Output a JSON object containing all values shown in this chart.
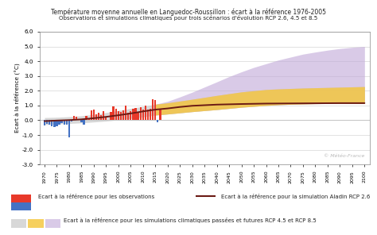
{
  "title1": "Température moyenne annuelle en Languedoc-Roussillon : écart à la référence 1976-2005",
  "title2": "Observations et simulations climatiques pour trois scénarios d'évolution RCP 2.6, 4.5 et 8.5",
  "ylabel": "Ecart à la référence (°C)",
  "watermark": "© Météo-France",
  "ylim": [
    -3.0,
    6.0
  ],
  "yticks": [
    -3.0,
    -2.0,
    -1.0,
    0.0,
    1.0,
    2.0,
    3.0,
    4.0,
    5.0,
    6.0
  ],
  "xtick_years": [
    1970,
    1975,
    1980,
    1985,
    1990,
    1995,
    2000,
    2005,
    2010,
    2015,
    2020,
    2025,
    2030,
    2035,
    2040,
    2045,
    2050,
    2055,
    2060,
    2065,
    2070,
    2075,
    2080,
    2085,
    2090,
    2095,
    2100
  ],
  "obs_years": [
    1970,
    1971,
    1972,
    1973,
    1974,
    1975,
    1976,
    1977,
    1978,
    1979,
    1980,
    1981,
    1982,
    1983,
    1984,
    1985,
    1986,
    1987,
    1988,
    1989,
    1990,
    1991,
    1992,
    1993,
    1994,
    1995,
    1996,
    1997,
    1998,
    1999,
    2000,
    2001,
    2002,
    2003,
    2004,
    2005,
    2006,
    2007,
    2008,
    2009,
    2010,
    2011,
    2012,
    2013,
    2014,
    2015,
    2016,
    2017
  ],
  "obs_values": [
    -0.35,
    -0.25,
    -0.3,
    -0.4,
    -0.45,
    -0.38,
    -0.3,
    -0.2,
    -0.28,
    -0.32,
    -1.15,
    -0.1,
    0.3,
    0.25,
    0.1,
    -0.15,
    -0.28,
    0.3,
    0.1,
    0.65,
    0.7,
    0.42,
    0.5,
    0.35,
    0.6,
    0.25,
    0.05,
    0.55,
    0.95,
    0.8,
    0.6,
    0.55,
    0.65,
    1.0,
    0.5,
    0.6,
    0.8,
    0.85,
    0.55,
    0.9,
    0.75,
    1.0,
    0.75,
    0.8,
    1.45,
    1.35,
    -0.15,
    0.8
  ],
  "sim_all_years": [
    1970,
    1975,
    1980,
    1985,
    1990,
    1995,
    2000,
    2005,
    2010,
    2015,
    2020,
    2025,
    2030,
    2035,
    2040,
    2045,
    2050,
    2055,
    2060,
    2065,
    2070,
    2075,
    2080,
    2085,
    2090,
    2095,
    2100
  ],
  "sim_gray_lower": [
    -0.3,
    -0.25,
    -0.22,
    -0.18,
    -0.12,
    -0.06,
    0.02,
    0.12,
    0.22,
    0.35,
    0.42,
    0.5,
    0.58,
    0.65,
    0.72,
    0.8,
    0.88,
    0.94,
    1.0,
    1.05,
    1.08,
    1.1,
    1.12,
    1.13,
    1.13,
    1.13,
    1.13
  ],
  "sim_gray_upper": [
    0.18,
    0.2,
    0.24,
    0.3,
    0.4,
    0.52,
    0.66,
    0.8,
    0.94,
    1.08,
    1.18,
    1.3,
    1.42,
    1.55,
    1.68,
    1.8,
    1.92,
    2.0,
    2.08,
    2.12,
    2.15,
    2.18,
    2.2,
    2.22,
    2.24,
    2.26,
    2.28
  ],
  "sim_yellow_years": [
    2015,
    2020,
    2025,
    2030,
    2035,
    2040,
    2045,
    2050,
    2055,
    2060,
    2065,
    2070,
    2075,
    2080,
    2085,
    2090,
    2095,
    2100
  ],
  "sim_yellow_lower": [
    0.35,
    0.42,
    0.5,
    0.58,
    0.65,
    0.72,
    0.8,
    0.88,
    0.94,
    1.0,
    1.05,
    1.08,
    1.1,
    1.12,
    1.13,
    1.13,
    1.13,
    1.13
  ],
  "sim_yellow_upper": [
    1.08,
    1.18,
    1.3,
    1.42,
    1.55,
    1.68,
    1.8,
    1.92,
    2.0,
    2.08,
    2.12,
    2.15,
    2.18,
    2.2,
    2.22,
    2.24,
    2.26,
    2.28
  ],
  "sim_purple_years": [
    2015,
    2020,
    2025,
    2030,
    2035,
    2040,
    2045,
    2050,
    2055,
    2060,
    2065,
    2070,
    2075,
    2080,
    2085,
    2090,
    2095,
    2100
  ],
  "sim_purple_lower": [
    0.35,
    0.42,
    0.5,
    0.58,
    0.65,
    0.72,
    0.8,
    0.88,
    0.94,
    1.0,
    1.05,
    1.08,
    1.1,
    1.12,
    1.13,
    1.13,
    1.13,
    1.13
  ],
  "sim_purple_upper": [
    1.08,
    1.28,
    1.58,
    1.9,
    2.25,
    2.6,
    2.96,
    3.28,
    3.58,
    3.83,
    4.08,
    4.28,
    4.48,
    4.62,
    4.75,
    4.86,
    4.94,
    5.0
  ],
  "rcp26_line_years": [
    1970,
    1975,
    1980,
    1985,
    1990,
    1995,
    2000,
    2005,
    2010,
    2015,
    2020,
    2025,
    2030,
    2040,
    2050,
    2060,
    2070,
    2080,
    2090,
    2100
  ],
  "rcp26_line_values": [
    -0.06,
    -0.02,
    0.01,
    0.06,
    0.14,
    0.23,
    0.34,
    0.46,
    0.6,
    0.72,
    0.8,
    0.9,
    0.98,
    1.06,
    1.1,
    1.13,
    1.14,
    1.15,
    1.16,
    1.16
  ],
  "color_obs_blue": "#4472C4",
  "color_obs_red": "#E8392A",
  "color_rcp26_line": "#6B1A14",
  "color_sim_gray": "#C8C8C8",
  "color_sim_yellow": "#F5C842",
  "color_sim_purple": "#C0A8D8",
  "bg_color": "#FFFFFF",
  "legend1_label_red": "Ecart à la référence pour les observations",
  "legend2_label": "Ecart à la référence pour la simulation Aladin RCP 2.6",
  "legend3_label": "Ecart à la référence pour les simulations climatiques passées et futures RCP 4.5 et RCP 8.5"
}
